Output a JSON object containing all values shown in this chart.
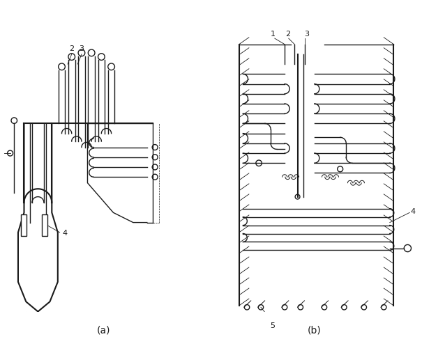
{
  "background_color": "#ffffff",
  "line_color": "#1a1a1a",
  "fig_width": 6.05,
  "fig_height": 4.97,
  "dpi": 100,
  "label_a": "(a)",
  "label_b": "(b)"
}
